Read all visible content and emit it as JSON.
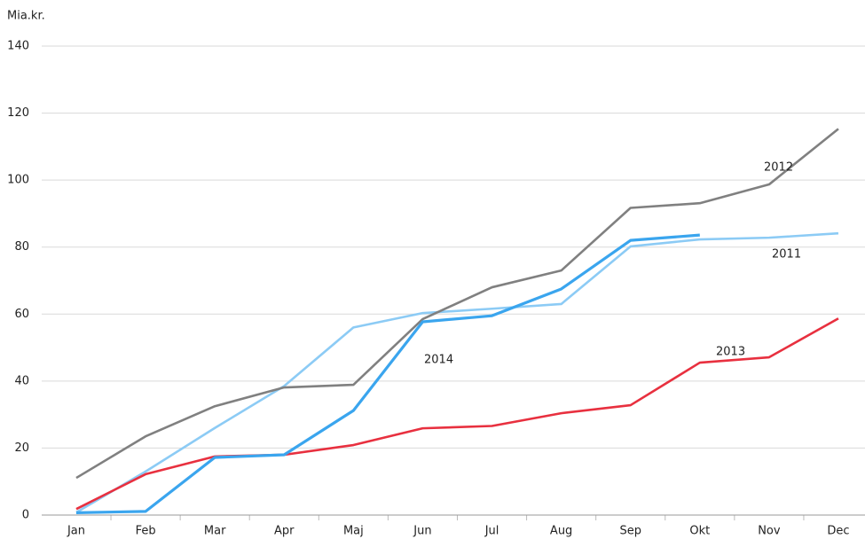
{
  "chart_data": {
    "type": "line",
    "y_label": "Mia.kr.",
    "categories": [
      "Jan",
      "Feb",
      "Mar",
      "Apr",
      "Maj",
      "Jun",
      "Jul",
      "Aug",
      "Sep",
      "Okt",
      "Nov",
      "Dec"
    ],
    "ylim": [
      0,
      140
    ],
    "yticks": [
      0,
      20,
      40,
      60,
      80,
      100,
      120,
      140
    ],
    "grid": true,
    "series": [
      {
        "name": "2011",
        "color": "#8ccbf5",
        "values": [
          0.8,
          13,
          26,
          38.5,
          56,
          60.3,
          61.6,
          63,
          80.2,
          82.3,
          82.8,
          84.1
        ]
      },
      {
        "name": "2012",
        "color": "#808080",
        "values": [
          11.1,
          23.5,
          32.5,
          38.1,
          38.9,
          58.5,
          68,
          73,
          91.7,
          93.1,
          98.7,
          115.3
        ]
      },
      {
        "name": "2013",
        "color": "#e8303f",
        "values": [
          1.8,
          12.2,
          17.5,
          18,
          20.9,
          25.9,
          26.6,
          30.4,
          32.8,
          45.5,
          47.1,
          58.7
        ]
      },
      {
        "name": "2014",
        "color": "#3aa5ee",
        "values": [
          0.7,
          1.1,
          17.2,
          18,
          31.2,
          57.7,
          59.5,
          67.5,
          82,
          83.6,
          null,
          null
        ]
      }
    ]
  }
}
